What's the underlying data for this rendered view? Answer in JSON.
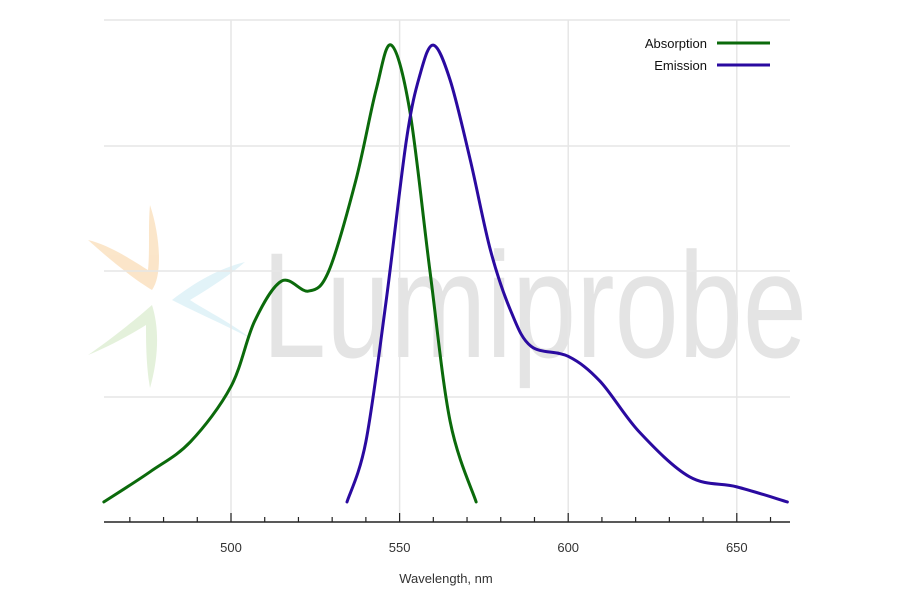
{
  "chart_data": {
    "type": "line",
    "title": "",
    "xlabel": "Wavelength, nm",
    "ylabel": "",
    "xlim": [
      462,
      665
    ],
    "ylim": [
      0,
      1.0
    ],
    "xticks_major": [
      500,
      550,
      600,
      650
    ],
    "xticks_minor_step": 10,
    "grid": true,
    "legend_position": "top-right",
    "watermark": "Lumiprobe",
    "series": [
      {
        "name": "Absorption",
        "color": "#0b6a0b",
        "x": [
          462.3,
          476,
          488,
          500,
          507,
          515,
          523,
          529,
          537,
          543,
          547.5,
          553,
          559,
          565,
          572.7
        ],
        "y": [
          0.04,
          0.1,
          0.16,
          0.27,
          0.4,
          0.48,
          0.46,
          0.5,
          0.68,
          0.86,
          0.95,
          0.82,
          0.5,
          0.2,
          0.04
        ]
      },
      {
        "name": "Emission",
        "color": "#2a0aa0",
        "x": [
          534.4,
          540,
          546,
          552,
          556,
          560,
          565,
          571,
          577,
          583,
          589,
          600,
          609.5,
          621,
          636,
          650,
          665
        ],
        "y": [
          0.04,
          0.16,
          0.44,
          0.76,
          0.89,
          0.95,
          0.88,
          0.72,
          0.54,
          0.42,
          0.35,
          0.33,
          0.28,
          0.18,
          0.09,
          0.07,
          0.04
        ]
      }
    ]
  }
}
